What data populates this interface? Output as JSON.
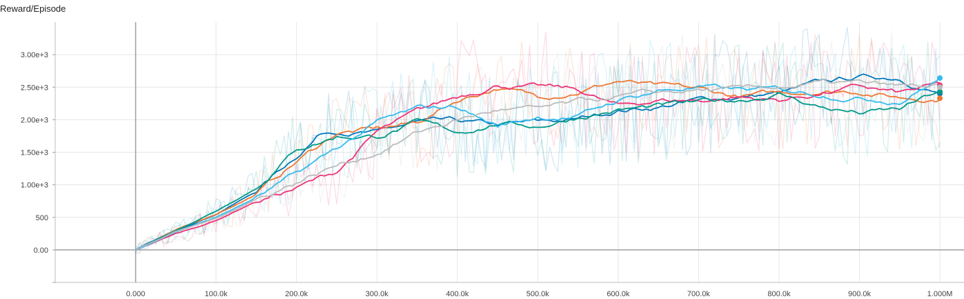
{
  "chart_data": {
    "type": "line",
    "title": "Reward/Episode",
    "xlabel": "",
    "ylabel": "",
    "xlim": [
      -100000,
      1030000
    ],
    "ylim": [
      -500,
      3500
    ],
    "x_ticks": [
      0,
      100000,
      200000,
      300000,
      400000,
      500000,
      600000,
      700000,
      800000,
      900000,
      1000000
    ],
    "x_tick_labels": [
      "0.000",
      "100.0k",
      "200.0k",
      "300.0k",
      "400.0k",
      "500.0k",
      "600.0k",
      "700.0k",
      "800.0k",
      "900.0k",
      "1.000M"
    ],
    "y_ticks": [
      0,
      500,
      1000,
      1500,
      2000,
      2500,
      3000
    ],
    "y_tick_labels": [
      "0.00",
      "500",
      "1.00e+3",
      "1.50e+3",
      "2.00e+3",
      "2.50e+3",
      "3.00e+3"
    ],
    "grid": true,
    "legend": "none",
    "series": [
      {
        "color": "#0077bb",
        "x": [
          0,
          50000,
          100000,
          150000,
          200000,
          230000,
          250000,
          300000,
          350000,
          400000,
          450000,
          500000,
          550000,
          600000,
          650000,
          700000,
          750000,
          800000,
          850000,
          900000,
          950000,
          1000000
        ],
        "y": [
          0,
          300,
          550,
          900,
          1450,
          1800,
          1850,
          1800,
          1950,
          1950,
          1900,
          1950,
          2000,
          2150,
          2200,
          2300,
          2350,
          2400,
          2550,
          2650,
          2650,
          2400
        ]
      },
      {
        "color": "#ee7733",
        "x": [
          0,
          50000,
          100000,
          150000,
          200000,
          250000,
          300000,
          350000,
          400000,
          450000,
          500000,
          550000,
          600000,
          650000,
          700000,
          750000,
          800000,
          850000,
          900000,
          950000,
          1000000
        ],
        "y": [
          0,
          300,
          550,
          850,
          1350,
          1800,
          1850,
          1950,
          2300,
          2500,
          2350,
          2450,
          2600,
          2500,
          2450,
          2350,
          2400,
          2450,
          2450,
          2350,
          2330
        ]
      },
      {
        "color": "#ee3377",
        "x": [
          0,
          50000,
          100000,
          150000,
          200000,
          250000,
          300000,
          350000,
          400000,
          450000,
          500000,
          550000,
          600000,
          650000,
          700000,
          750000,
          800000,
          850000,
          900000,
          950000,
          1000000
        ],
        "y": [
          0,
          250,
          450,
          750,
          950,
          1200,
          1800,
          2100,
          2350,
          2550,
          2500,
          2450,
          2200,
          2300,
          2300,
          2350,
          2300,
          2400,
          2500,
          2400,
          2530
        ]
      },
      {
        "color": "#009988",
        "x": [
          0,
          50000,
          100000,
          150000,
          200000,
          250000,
          300000,
          350000,
          400000,
          450000,
          500000,
          550000,
          600000,
          650000,
          700000,
          750000,
          800000,
          850000,
          900000,
          950000,
          1000000
        ],
        "y": [
          0,
          300,
          600,
          950,
          1550,
          1750,
          1750,
          1950,
          1800,
          1950,
          1900,
          2050,
          2150,
          2200,
          2250,
          2300,
          2400,
          2200,
          2100,
          2150,
          2430
        ]
      },
      {
        "color": "#33bbee",
        "x": [
          0,
          50000,
          100000,
          150000,
          200000,
          250000,
          300000,
          350000,
          400000,
          450000,
          500000,
          550000,
          600000,
          650000,
          700000,
          750000,
          800000,
          850000,
          900000,
          950000,
          1000000
        ],
        "y": [
          0,
          280,
          500,
          800,
          1150,
          1550,
          1950,
          2150,
          2200,
          1900,
          2050,
          2050,
          2300,
          2450,
          2500,
          2450,
          2450,
          2400,
          2350,
          2300,
          2640
        ]
      },
      {
        "color": "#bbbbbb",
        "x": [
          0,
          50000,
          100000,
          150000,
          200000,
          250000,
          300000,
          350000,
          400000,
          450000,
          500000,
          550000,
          600000,
          650000,
          700000,
          750000,
          800000,
          850000,
          900000,
          950000,
          1000000
        ],
        "y": [
          0,
          280,
          480,
          780,
          1050,
          1300,
          1500,
          1800,
          2000,
          2150,
          2150,
          2250,
          2350,
          2400,
          2450,
          2450,
          2500,
          2550,
          2550,
          2500,
          2500
        ]
      }
    ]
  }
}
